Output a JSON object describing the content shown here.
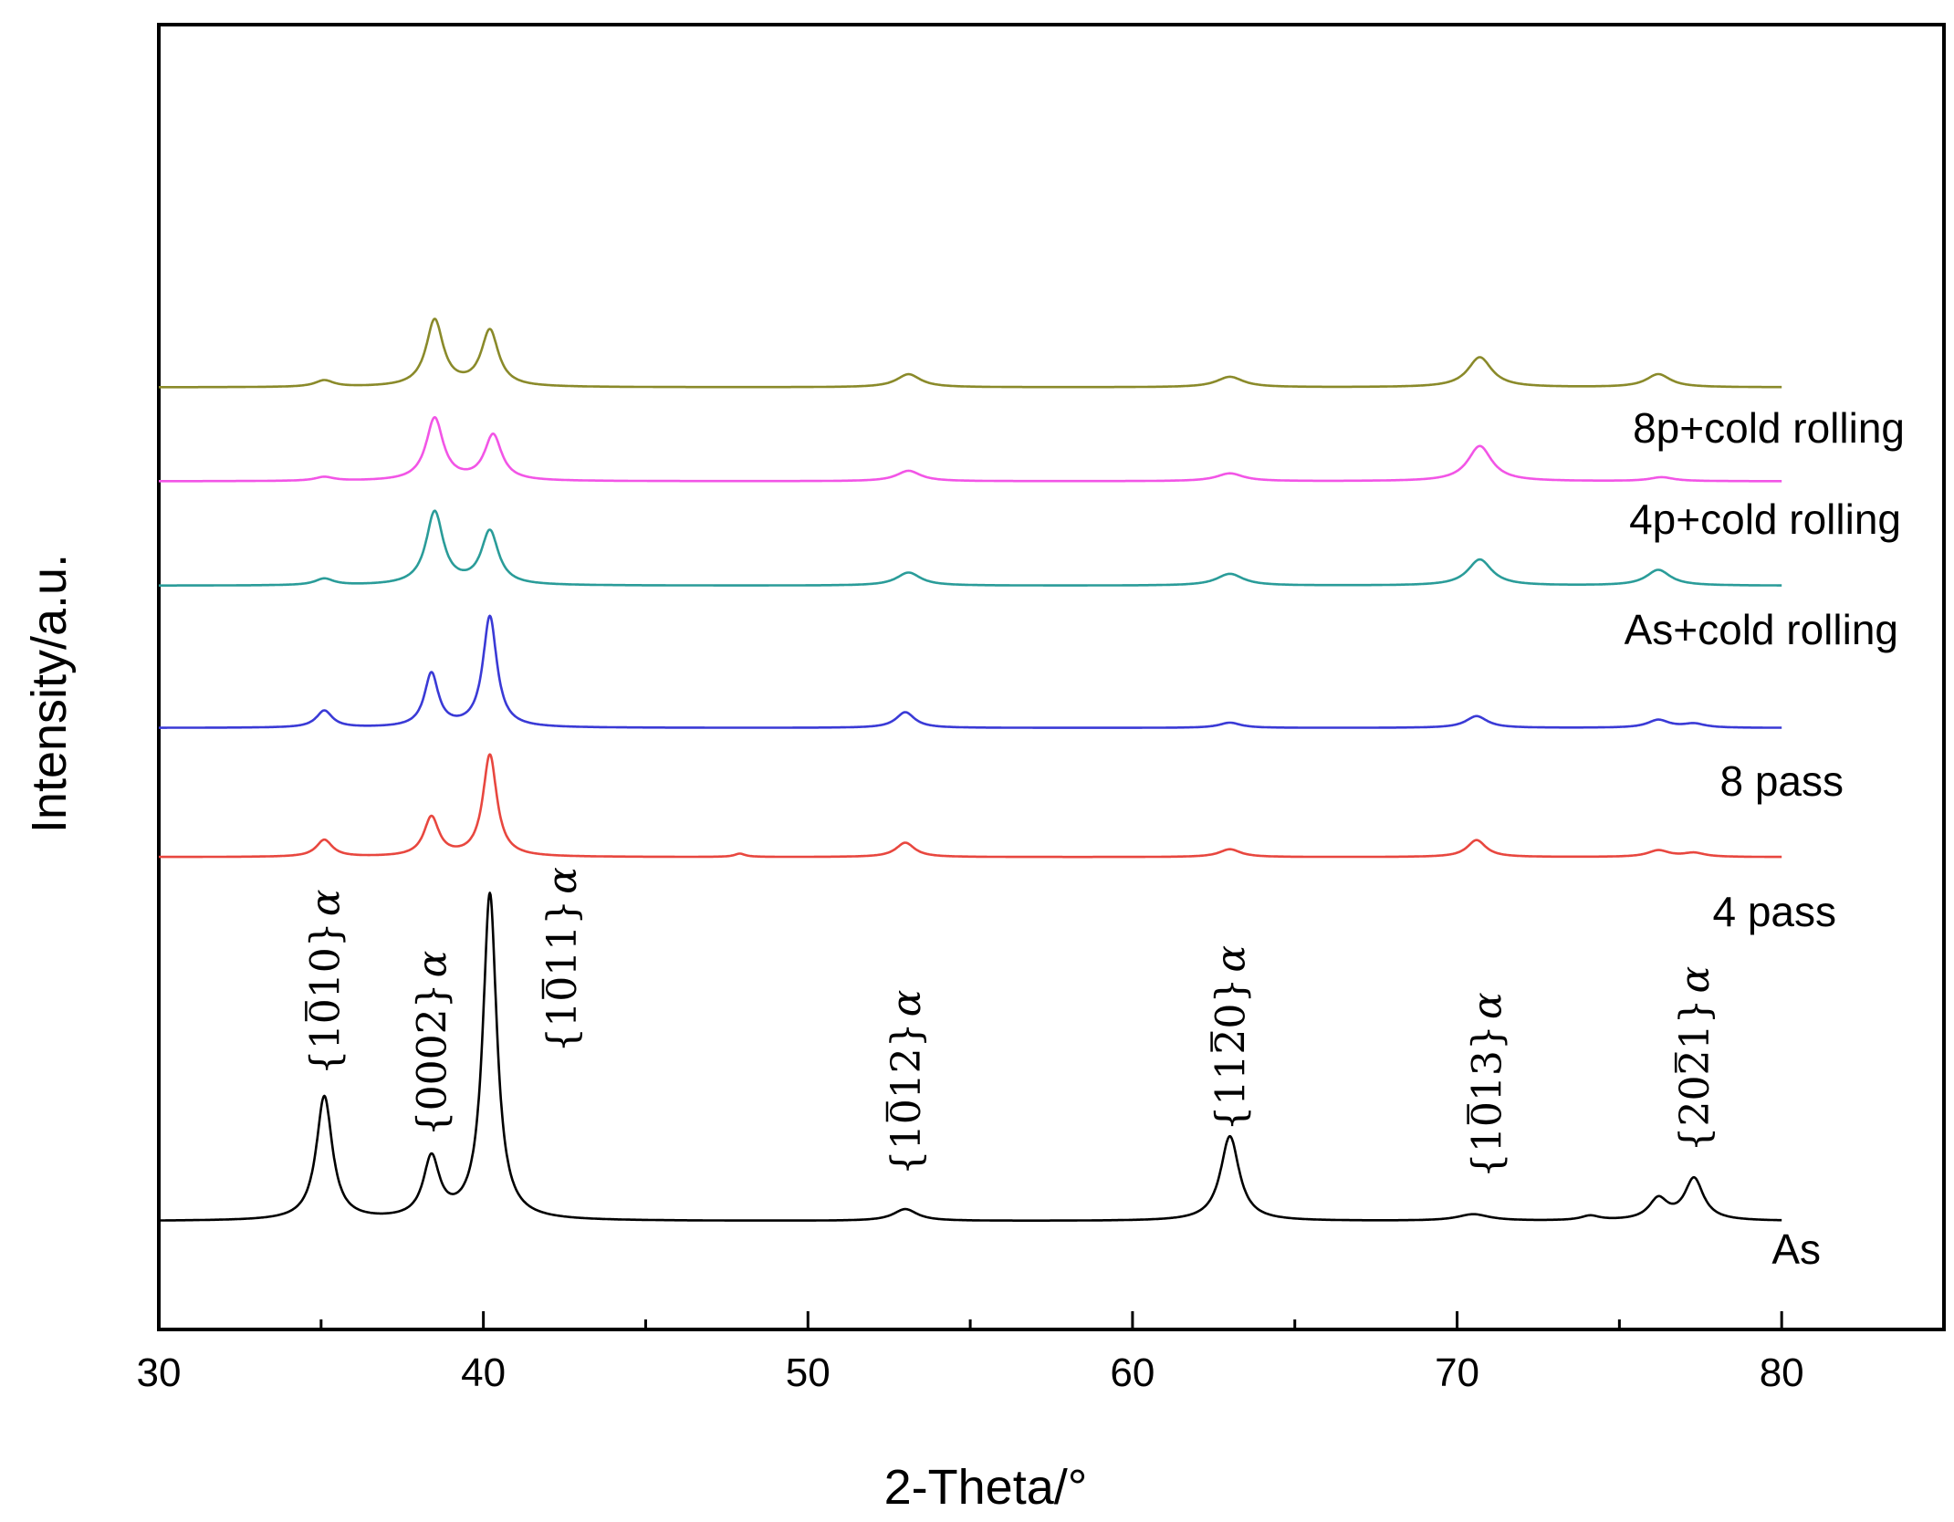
{
  "chart_data": {
    "type": "line",
    "title": "",
    "xlabel": "2-Theta/°",
    "ylabel": "Intensity/a.u.",
    "xlim": [
      30,
      85
    ],
    "ylim": [
      0,
      100
    ],
    "xticks": [
      30,
      40,
      50,
      60,
      70,
      80
    ],
    "xtick_labels": [
      "30",
      "40",
      "50",
      "60",
      "70",
      "80"
    ],
    "grid": false,
    "legend": "none",
    "series": [
      {
        "name": "As",
        "label": "As",
        "color": "#000000",
        "baseline": 8.3,
        "peaks": [
          {
            "x": 35.1,
            "h": 9.5,
            "w": 0.3
          },
          {
            "x": 38.4,
            "h": 4.6,
            "w": 0.3
          },
          {
            "x": 40.2,
            "h": 25.0,
            "w": 0.26
          },
          {
            "x": 53.0,
            "h": 0.9,
            "w": 0.45
          },
          {
            "x": 63.0,
            "h": 6.5,
            "w": 0.35
          },
          {
            "x": 70.5,
            "h": 0.5,
            "w": 0.6
          },
          {
            "x": 74.1,
            "h": 0.35,
            "w": 0.35
          },
          {
            "x": 76.2,
            "h": 1.6,
            "w": 0.35
          },
          {
            "x": 77.3,
            "h": 3.2,
            "w": 0.35
          }
        ]
      },
      {
        "name": "4 pass",
        "label": "4 pass",
        "color": "#e8473f",
        "baseline": 36.2,
        "peaks": [
          {
            "x": 35.1,
            "h": 1.3,
            "w": 0.3
          },
          {
            "x": 38.4,
            "h": 3.0,
            "w": 0.28
          },
          {
            "x": 40.2,
            "h": 7.8,
            "w": 0.26
          },
          {
            "x": 47.9,
            "h": 0.25,
            "w": 0.2
          },
          {
            "x": 53.0,
            "h": 1.1,
            "w": 0.35
          },
          {
            "x": 63.0,
            "h": 0.6,
            "w": 0.4
          },
          {
            "x": 70.6,
            "h": 1.3,
            "w": 0.35
          },
          {
            "x": 76.2,
            "h": 0.5,
            "w": 0.4
          },
          {
            "x": 77.3,
            "h": 0.3,
            "w": 0.4
          }
        ]
      },
      {
        "name": "8 pass",
        "label": "8 pass",
        "color": "#3a3ad6",
        "baseline": 46.1,
        "peaks": [
          {
            "x": 35.1,
            "h": 1.3,
            "w": 0.3
          },
          {
            "x": 38.4,
            "h": 4.1,
            "w": 0.26
          },
          {
            "x": 40.2,
            "h": 8.5,
            "w": 0.26
          },
          {
            "x": 53.0,
            "h": 1.2,
            "w": 0.35
          },
          {
            "x": 63.0,
            "h": 0.4,
            "w": 0.4
          },
          {
            "x": 70.6,
            "h": 0.9,
            "w": 0.4
          },
          {
            "x": 76.2,
            "h": 0.6,
            "w": 0.4
          },
          {
            "x": 77.3,
            "h": 0.3,
            "w": 0.4
          }
        ]
      },
      {
        "name": "As+cold rolling",
        "label": "As+cold rolling",
        "color": "#2a9c99",
        "baseline": 57.0,
        "peaks": [
          {
            "x": 35.1,
            "h": 0.5,
            "w": 0.35
          },
          {
            "x": 38.5,
            "h": 5.6,
            "w": 0.32
          },
          {
            "x": 40.2,
            "h": 4.1,
            "w": 0.32
          },
          {
            "x": 53.1,
            "h": 1.0,
            "w": 0.45
          },
          {
            "x": 63.0,
            "h": 0.9,
            "w": 0.5
          },
          {
            "x": 70.7,
            "h": 2.0,
            "w": 0.45
          },
          {
            "x": 76.2,
            "h": 1.2,
            "w": 0.45
          }
        ]
      },
      {
        "name": "4p+cold rolling",
        "label": "4p+cold rolling",
        "color": "#f255e6",
        "baseline": 65.0,
        "peaks": [
          {
            "x": 35.1,
            "h": 0.3,
            "w": 0.35
          },
          {
            "x": 38.5,
            "h": 4.8,
            "w": 0.32
          },
          {
            "x": 40.3,
            "h": 3.5,
            "w": 0.32
          },
          {
            "x": 53.1,
            "h": 0.8,
            "w": 0.45
          },
          {
            "x": 63.0,
            "h": 0.6,
            "w": 0.5
          },
          {
            "x": 70.7,
            "h": 2.7,
            "w": 0.45
          },
          {
            "x": 76.3,
            "h": 0.3,
            "w": 0.45
          }
        ]
      },
      {
        "name": "8p+cold rolling",
        "label": "8p+cold rolling",
        "color": "#8a8a2a",
        "baseline": 72.2,
        "peaks": [
          {
            "x": 35.1,
            "h": 0.5,
            "w": 0.35
          },
          {
            "x": 38.5,
            "h": 5.1,
            "w": 0.32
          },
          {
            "x": 40.2,
            "h": 4.3,
            "w": 0.32
          },
          {
            "x": 53.1,
            "h": 1.0,
            "w": 0.45
          },
          {
            "x": 63.0,
            "h": 0.8,
            "w": 0.5
          },
          {
            "x": 70.7,
            "h": 2.3,
            "w": 0.45
          },
          {
            "x": 76.2,
            "h": 1.0,
            "w": 0.45
          }
        ]
      }
    ],
    "annotations": [
      {
        "x": 35.1,
        "y": 19.5,
        "hkl": "{1010}",
        "bar_digit": 2,
        "phase": "α"
      },
      {
        "x": 38.4,
        "y": 14.8,
        "hkl": "{0002}",
        "bar_digit": -1,
        "phase": "α"
      },
      {
        "x": 42.4,
        "y": 21.2,
        "hkl": "{1011}",
        "bar_digit": 2,
        "phase": "α"
      },
      {
        "x": 53.0,
        "y": 11.8,
        "hkl": "{1012}",
        "bar_digit": 2,
        "phase": "α"
      },
      {
        "x": 63.0,
        "y": 15.2,
        "hkl": "{1120}",
        "bar_digit": 3,
        "phase": "α"
      },
      {
        "x": 70.9,
        "y": 11.6,
        "hkl": "{1013}",
        "bar_digit": 2,
        "phase": "α"
      },
      {
        "x": 77.3,
        "y": 13.6,
        "hkl": "{2021}",
        "bar_digit": 3,
        "phase": "α"
      }
    ]
  }
}
